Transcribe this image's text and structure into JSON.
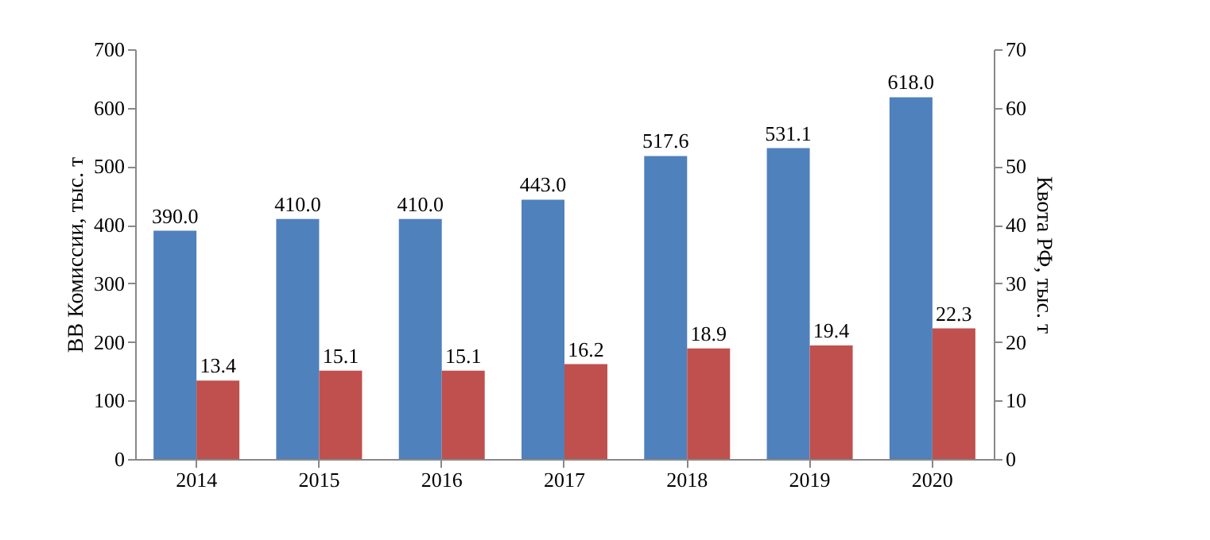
{
  "chart_data": {
    "type": "bar",
    "ylabel": "ВВ Комиссии, тыс. т",
    "y2label": "Квота РФ, тыс. т",
    "categories": [
      "2014",
      "2015",
      "2016",
      "2017",
      "2018",
      "2019",
      "2020"
    ],
    "series": [
      {
        "color": "#4f81bd",
        "values": [
          390.0,
          410.0,
          410.0,
          443.0,
          517.6,
          531.1,
          618.0
        ],
        "value_labels": [
          "390.0",
          "410.0",
          "410.0",
          "443.0",
          "517.6",
          "531.1",
          "618.0"
        ]
      },
      {
        "color": "#c0504d",
        "axis": "y2",
        "values": [
          13.4,
          15.1,
          15.1,
          16.2,
          18.9,
          19.4,
          22.3
        ],
        "value_labels": [
          "13.4",
          "15.1",
          "15.1",
          "16.2",
          "18.9",
          "19.4",
          "22.3"
        ]
      }
    ],
    "ylim": [
      0,
      700
    ],
    "yticks": [
      0,
      100,
      200,
      300,
      400,
      500,
      600,
      700
    ],
    "y2lim": [
      0,
      70
    ],
    "y2ticks": [
      0,
      10,
      20,
      30,
      40,
      50,
      60,
      70
    ]
  }
}
